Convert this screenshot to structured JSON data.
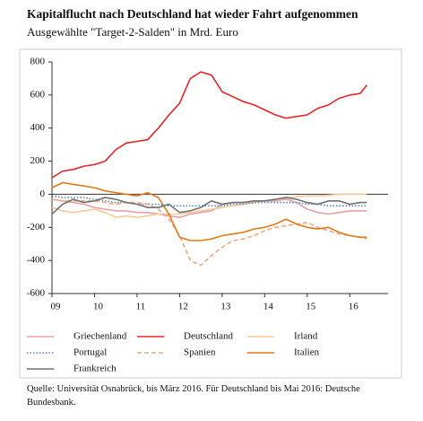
{
  "chart_data": {
    "type": "line",
    "title": "Kapitalflucht nach Deutschland hat wieder Fahrt aufgenommen",
    "subtitle": "Ausgewählte \"Target-2-Salden\" in Mrd. Euro",
    "source": "Quelle: Universität Osnabrück, bis März 2016. Für Deutschland bis Mai 2016: Deutsche Bundesbank.",
    "x": [
      2009,
      2009.25,
      2009.5,
      2009.75,
      2010,
      2010.25,
      2010.5,
      2010.75,
      2011,
      2011.25,
      2011.5,
      2011.75,
      2012,
      2012.25,
      2012.5,
      2012.75,
      2013,
      2013.25,
      2013.5,
      2013.75,
      2014,
      2014.25,
      2014.5,
      2014.75,
      2015,
      2015.25,
      2015.5,
      2015.75,
      2016,
      2016.25,
      2016.4
    ],
    "xlim": [
      2009,
      2016.9
    ],
    "xticks": [
      {
        "value": 2009,
        "label": "09"
      },
      {
        "value": 2010,
        "label": "10"
      },
      {
        "value": 2011,
        "label": "11"
      },
      {
        "value": 2012,
        "label": "12"
      },
      {
        "value": 2013,
        "label": "13"
      },
      {
        "value": 2014,
        "label": "14"
      },
      {
        "value": 2015,
        "label": "15"
      },
      {
        "value": 2016,
        "label": "16"
      }
    ],
    "ylim": [
      -600,
      800
    ],
    "yticks": [
      800,
      600,
      400,
      200,
      0,
      -200,
      -400,
      -600
    ],
    "series": [
      {
        "name": "Griechenland",
        "color": "#e8a0a8",
        "style": "solid",
        "values": [
          -30,
          -40,
          -50,
          -60,
          -80,
          -90,
          -100,
          -100,
          -110,
          -110,
          -120,
          -130,
          -140,
          -120,
          -110,
          -100,
          -60,
          -50,
          -50,
          -40,
          -40,
          -40,
          -30,
          -50,
          -90,
          -110,
          -120,
          -110,
          -100,
          -100,
          -100
        ]
      },
      {
        "name": "Deutschland",
        "color": "#e8262a",
        "style": "solid",
        "values": [
          100,
          140,
          150,
          170,
          180,
          200,
          270,
          310,
          320,
          330,
          400,
          480,
          550,
          700,
          740,
          720,
          620,
          590,
          560,
          540,
          510,
          480,
          460,
          470,
          480,
          520,
          540,
          580,
          600,
          610,
          660
        ]
      },
      {
        "name": "Irland",
        "color": "#f7c99a",
        "style": "solid",
        "values": [
          -80,
          -100,
          -110,
          -100,
          -90,
          -110,
          -140,
          -130,
          -140,
          -130,
          -120,
          -120,
          -120,
          -110,
          -100,
          -90,
          -80,
          -70,
          -60,
          -50,
          -40,
          -30,
          -20,
          -15,
          -10,
          -10,
          -5,
          0,
          0,
          0,
          0
        ]
      },
      {
        "name": "Portugal",
        "color": "#5b7fc4",
        "style": "dotted",
        "values": [
          -10,
          -20,
          -20,
          -20,
          -30,
          -40,
          -50,
          -50,
          -60,
          -60,
          -60,
          -70,
          -70,
          -70,
          -70,
          -70,
          -70,
          -60,
          -60,
          -50,
          -50,
          -50,
          -50,
          -50,
          -60,
          -60,
          -70,
          -70,
          -70,
          -70,
          -70
        ]
      },
      {
        "name": "Spanien",
        "color": "#f0a882",
        "style": "dashed",
        "values": [
          -30,
          -40,
          -40,
          -40,
          -40,
          -50,
          -60,
          -50,
          -50,
          -60,
          -90,
          -150,
          -250,
          -400,
          -430,
          -370,
          -320,
          -280,
          -270,
          -250,
          -220,
          -200,
          -190,
          -180,
          -170,
          -200,
          -220,
          -240,
          -250,
          -260,
          -270
        ]
      },
      {
        "name": "Italien",
        "color": "#e07b1a",
        "style": "solid",
        "values": [
          40,
          70,
          60,
          50,
          40,
          20,
          10,
          0,
          -10,
          10,
          -20,
          -120,
          -260,
          -280,
          -280,
          -270,
          -250,
          -240,
          -230,
          -210,
          -200,
          -180,
          -150,
          -180,
          -200,
          -210,
          -200,
          -230,
          -250,
          -260,
          -260
        ]
      },
      {
        "name": "Frankreich",
        "color": "#707070",
        "style": "solid",
        "values": [
          -120,
          -60,
          -30,
          -50,
          -40,
          -20,
          -30,
          -50,
          -60,
          -80,
          -80,
          -60,
          -110,
          -100,
          -80,
          -40,
          -60,
          -50,
          -50,
          -40,
          -40,
          -30,
          -20,
          -30,
          -50,
          -60,
          -40,
          -40,
          -60,
          -50,
          -50
        ]
      }
    ]
  }
}
